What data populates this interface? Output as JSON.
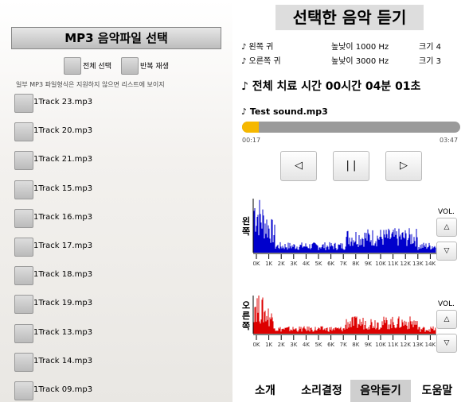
{
  "left": {
    "title": "MP3 음악파일 선택",
    "options": [
      "전체 선택",
      "반복 재생"
    ],
    "notice": "일부 MP3 파일형식은 지원하지 않으면 리스트에 보이지",
    "tracks": [
      "1Track 23.mp3",
      "1Track 20.mp3",
      "1Track 21.mp3",
      "1Track 15.mp3",
      "1Track 16.mp3",
      "1Track 17.mp3",
      "1Track 18.mp3",
      "1Track 19.mp3",
      "1Track 13.mp3",
      "1Track 14.mp3",
      "1Track 09.mp3"
    ]
  },
  "right": {
    "title": "선택한 음악 듣기",
    "ears": [
      {
        "label": "♪ 왼쪽 귀",
        "pitch": "높낮이 1000 Hz",
        "volume": "크기 4"
      },
      {
        "label": "♪ 오른쪽 귀",
        "pitch": "높낮이 3000 Hz",
        "volume": "크기 3"
      }
    ],
    "total_time": "♪ 전체 치료 시간 00시간 04분 01초",
    "file": "♪ Test sound.mp3",
    "elapsed": "00:17",
    "duration": "03:47",
    "progress": 7.5,
    "controls": [
      "◁",
      "| |",
      "▷"
    ],
    "channels": [
      {
        "label": "왼\n쪽",
        "color": "#0000cc"
      },
      {
        "label": "오\n른\n쪽",
        "color": "#dd0000"
      }
    ],
    "freq_ticks": [
      "0K",
      "1K",
      "2K",
      "3K",
      "4K",
      "5K",
      "6K",
      "7K",
      "8K",
      "9K",
      "10K",
      "11K",
      "12K",
      "13K",
      "14K"
    ],
    "vol_label": "VOL.",
    "vol_buttons": [
      "△",
      "▽"
    ]
  },
  "tabs": {
    "items": [
      "소개",
      "소리결정",
      "음악듣기",
      "도움말"
    ],
    "active": 2
  }
}
